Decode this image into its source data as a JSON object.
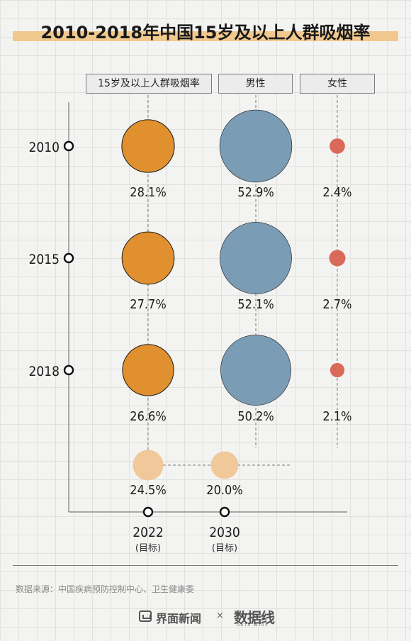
{
  "chart_data": {
    "type": "bubble",
    "title": "2010-2018年中国15岁及以上人群吸烟率",
    "columns": [
      "15岁及以上人群吸烟率",
      "男性",
      "女性"
    ],
    "years": [
      "2010",
      "2015",
      "2018"
    ],
    "series": [
      {
        "name": "15岁及以上人群吸烟率",
        "values": [
          28.1,
          27.7,
          26.6
        ],
        "labels": [
          "28.1%",
          "27.7%",
          "26.6%"
        ],
        "color": "#e0902e"
      },
      {
        "name": "男性",
        "values": [
          52.9,
          52.1,
          50.2
        ],
        "labels": [
          "52.9%",
          "52.1%",
          "50.2%"
        ],
        "color": "#7b9cb5"
      },
      {
        "name": "女性",
        "values": [
          2.4,
          2.7,
          2.1
        ],
        "labels": [
          "2.4%",
          "2.7%",
          "2.1%"
        ],
        "color": "#d96a5a"
      }
    ],
    "targets": [
      {
        "year": "2022",
        "note": "(目标)",
        "value": 24.5,
        "label": "24.5%"
      },
      {
        "year": "2030",
        "note": "(目标)",
        "value": 20.0,
        "label": "20.0%"
      }
    ],
    "target_color": "#f0c89a"
  },
  "source": "数据来源：中国疾病预防控制中心、卫生健康委",
  "brand": {
    "name": "界面新闻",
    "separator": "×",
    "logo": "数据线",
    "logo_sub": "DATA WIRE"
  }
}
